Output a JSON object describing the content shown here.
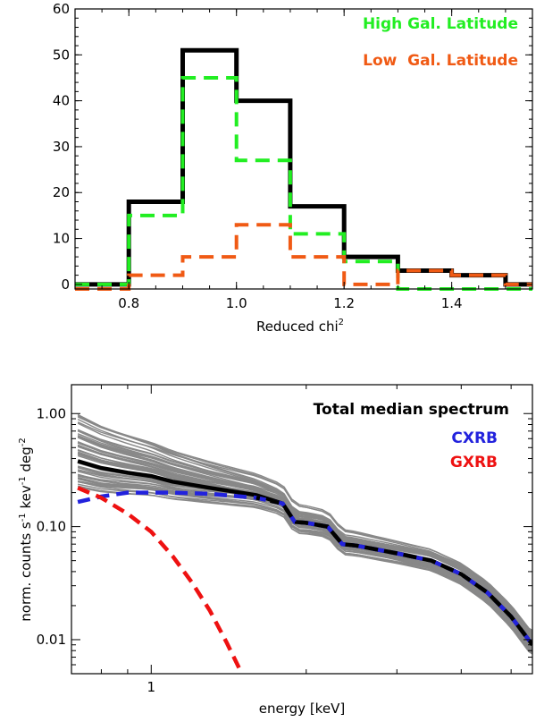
{
  "chart_data": [
    {
      "type": "step-histogram",
      "xlabel": "Reduced chi",
      "xlabel_sup": "2",
      "ylabel": "",
      "xlim": [
        0.7,
        1.55
      ],
      "ylim": [
        -1,
        60
      ],
      "xticks": [
        0.8,
        1.0,
        1.2,
        1.4
      ],
      "xtick_labels": [
        "0.8",
        "1.0",
        "1.2",
        "1.4"
      ],
      "yticks": [
        0,
        10,
        20,
        30,
        40,
        50,
        60
      ],
      "ytick_labels": [
        "0",
        "10",
        "20",
        "30",
        "40",
        "50",
        "60"
      ],
      "bin_edges": [
        0.7,
        0.8,
        0.9,
        1.0,
        1.1,
        1.2,
        1.3,
        1.4,
        1.5,
        1.55
      ],
      "series": [
        {
          "name": "",
          "color": "#000000",
          "style": "solid",
          "values": [
            0,
            18,
            51,
            40,
            17,
            6,
            3,
            2,
            0
          ]
        },
        {
          "name": "High Gal. Latitude",
          "color": "#22ee22",
          "style": "dashed",
          "values": [
            0,
            15,
            45,
            27,
            11,
            5,
            -1,
            -1,
            -1
          ]
        },
        {
          "name": "Low  Gal. Latitude",
          "color": "#f05a14",
          "style": "dashed",
          "values": [
            -1,
            2,
            6,
            13,
            6,
            0,
            3,
            2,
            0
          ]
        }
      ],
      "legend": [
        {
          "label": "High Gal. Latitude",
          "color": "#22ee22"
        },
        {
          "label": "Low  Gal. Latitude",
          "color": "#f05a14"
        }
      ],
      "legend_position": "top-right"
    },
    {
      "type": "line",
      "scale": "log-log",
      "xlabel": "energy [keV]",
      "ylabel": "norm. counts s",
      "ylabel_parts": [
        "norm. counts s",
        "-1",
        " kev",
        "-1",
        " deg",
        "-2"
      ],
      "xlim": [
        0.7,
        5.5
      ],
      "ylim": [
        0.005,
        1.8
      ],
      "xticks": [
        1
      ],
      "xtick_labels": [
        "1"
      ],
      "yticks": [
        0.01,
        0.1,
        1.0
      ],
      "ytick_labels": [
        "0.01",
        "0.10",
        "1.00"
      ],
      "title_text": "Total median spectrum",
      "series": [
        {
          "name": "Total median spectrum",
          "color": "#000000",
          "style": "solid-dashed",
          "x": [
            0.72,
            0.8,
            0.9,
            1.0,
            1.1,
            1.3,
            1.6,
            1.8,
            1.9,
            2.0,
            2.2,
            2.35,
            2.5,
            3.0,
            3.5,
            4.0,
            4.5,
            5.0,
            5.5
          ],
          "y": [
            0.38,
            0.33,
            0.3,
            0.28,
            0.25,
            0.22,
            0.19,
            0.16,
            0.11,
            0.108,
            0.1,
            0.07,
            0.068,
            0.058,
            0.05,
            0.038,
            0.026,
            0.016,
            0.009
          ]
        },
        {
          "name": "CXRB",
          "color": "#2222dd",
          "style": "dashed",
          "x": [
            0.72,
            0.8,
            0.9,
            1.0,
            1.1,
            1.3,
            1.6,
            1.8,
            1.9,
            2.0,
            2.2,
            2.35,
            2.5,
            3.0,
            3.5,
            4.0,
            4.5,
            5.0,
            5.5
          ],
          "y": [
            0.165,
            0.185,
            0.2,
            0.2,
            0.2,
            0.195,
            0.18,
            0.16,
            0.11,
            0.108,
            0.1,
            0.07,
            0.068,
            0.058,
            0.05,
            0.038,
            0.026,
            0.016,
            0.009
          ]
        },
        {
          "name": "GXRB",
          "color": "#ee1111",
          "style": "dashed",
          "x": [
            0.72,
            0.8,
            0.9,
            1.0,
            1.1,
            1.2,
            1.3,
            1.4,
            1.5
          ],
          "y": [
            0.22,
            0.18,
            0.13,
            0.09,
            0.055,
            0.032,
            0.018,
            0.0095,
            0.005
          ]
        }
      ],
      "background_lines": {
        "color": "#888888",
        "count": 60
      },
      "legend": [
        {
          "label": "Total median spectrum",
          "color": "#000000"
        },
        {
          "label": "CXRB",
          "color": "#2222dd"
        },
        {
          "label": "GXRB",
          "color": "#ee1111"
        }
      ],
      "legend_position": "top-right"
    }
  ]
}
